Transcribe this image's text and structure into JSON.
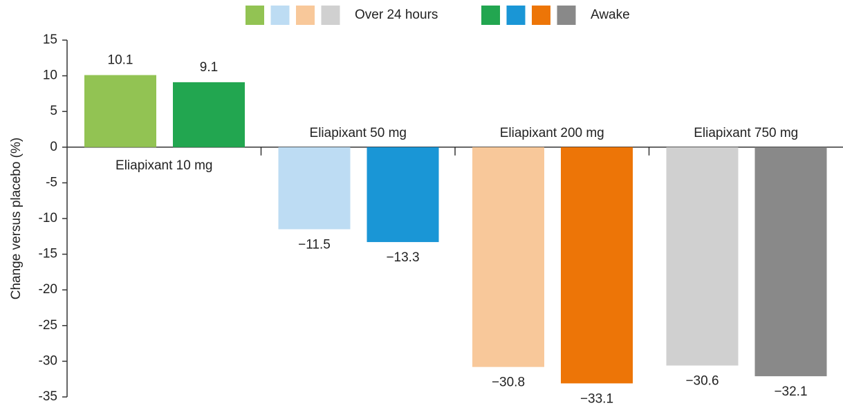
{
  "chart_data": {
    "type": "bar",
    "y_label": "Change versus placebo (%)",
    "categories": [
      "Eliapixant 10 mg",
      "Eliapixant 50 mg",
      "Eliapixant 200 mg",
      "Eliapixant 750 mg"
    ],
    "series": [
      {
        "name": "Over 24 hours",
        "colors": [
          "#92c353",
          "#bddcf3",
          "#f8c89a",
          "#d0d0d0"
        ],
        "values": [
          10.1,
          -11.5,
          -30.8,
          -30.6
        ],
        "value_labels": [
          "10.1",
          "−11.5",
          "−30.8",
          "−30.6"
        ]
      },
      {
        "name": "Awake",
        "colors": [
          "#22a650",
          "#1a96d6",
          "#ed7507",
          "#898989"
        ],
        "values": [
          9.1,
          -13.3,
          -33.1,
          -32.1
        ],
        "value_labels": [
          "9.1",
          "−13.3",
          "−33.1",
          "−32.1"
        ]
      }
    ],
    "ylim": [
      -35,
      15
    ],
    "yticks": [
      -35,
      -30,
      -25,
      -20,
      -15,
      -10,
      -5,
      0,
      5,
      10,
      15
    ]
  }
}
